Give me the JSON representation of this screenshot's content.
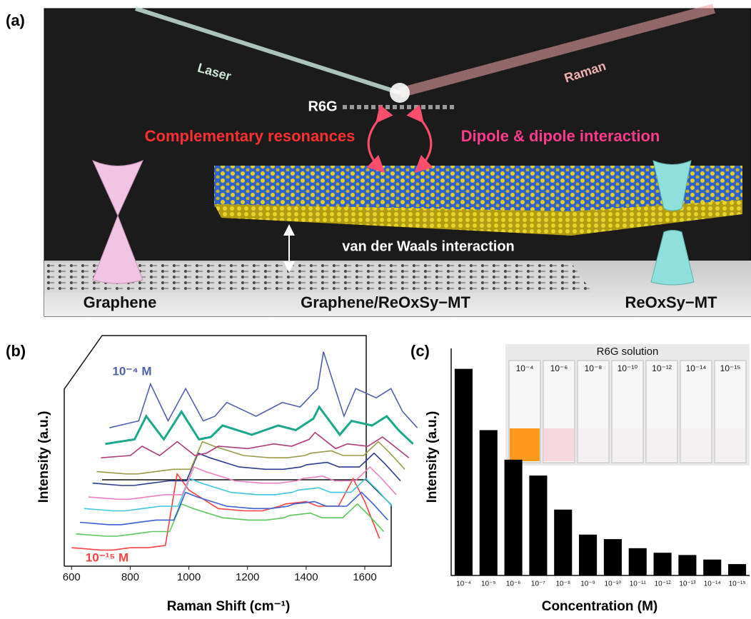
{
  "figure": {
    "panel_a": {
      "label": "(a)",
      "laser": "Laser",
      "raman": "Raman",
      "molecule": "R6G",
      "left_note": "Complementary resonances",
      "right_note": "Dipole & dipole interaction",
      "interlayer": "van der Waals interaction",
      "left_material": "Graphene",
      "center_material": "Graphene/ReOxSy−MT",
      "right_material": "ReOxSy−MT"
    }
  },
  "chart_data": [
    {
      "type": "waterfall",
      "panel_label": "(b)",
      "x_label": "Raman Shift (cm⁻¹)",
      "y_label": "Intensity (a.u.)",
      "annotations": [
        "10⁻⁴ M",
        "10⁻¹⁵ M"
      ],
      "x": [
        600,
        700,
        740,
        800,
        860,
        920,
        960,
        1000,
        1100,
        1190,
        1250,
        1310,
        1330,
        1400,
        1440,
        1510,
        1560,
        1600,
        1650
      ],
      "xlim": [
        575,
        1690
      ],
      "xticks": [
        600,
        800,
        1000,
        1200,
        1400,
        1600
      ],
      "ylim": [
        0,
        100
      ],
      "series": [
        {
          "color": "#ff4040",
          "values": [
            8,
            7,
            7,
            8,
            8,
            9,
            40,
            33,
            25,
            24,
            24,
            26,
            27,
            28,
            26,
            26,
            38,
            28,
            12
          ]
        },
        {
          "color": "#5bc85b",
          "values": [
            14,
            13,
            13,
            14,
            15,
            15,
            27,
            25,
            21,
            20,
            20,
            21,
            22,
            23,
            21,
            21,
            27,
            22,
            15
          ]
        },
        {
          "color": "#3d5fd6",
          "values": [
            19,
            18,
            18,
            19,
            20,
            20,
            32,
            30,
            26,
            25,
            25,
            26,
            27,
            28,
            26,
            26,
            32,
            27,
            20
          ]
        },
        {
          "color": "#3fc6e0",
          "values": [
            25,
            24,
            24,
            25,
            26,
            26,
            38,
            36,
            32,
            31,
            31,
            32,
            33,
            34,
            32,
            32,
            38,
            33,
            26
          ]
        },
        {
          "color": "#ef7fbf",
          "values": [
            30,
            29,
            29,
            30,
            31,
            31,
            43,
            41,
            37,
            36,
            36,
            37,
            38,
            39,
            37,
            37,
            43,
            38,
            31
          ]
        },
        {
          "color": "#2b3d8f",
          "values": [
            36,
            35,
            35,
            36,
            37,
            37,
            49,
            47,
            43,
            42,
            42,
            43,
            44,
            45,
            43,
            43,
            49,
            44,
            37
          ]
        },
        {
          "color": "#9a9a4a",
          "values": [
            41,
            40,
            40,
            41,
            42,
            42,
            54,
            52,
            48,
            47,
            47,
            48,
            49,
            50,
            48,
            48,
            54,
            49,
            42
          ]
        },
        {
          "color": "#b03a7a",
          "values": [
            47,
            48,
            52,
            48,
            54,
            48,
            49,
            52,
            51,
            53,
            52,
            55,
            58,
            51,
            53,
            52,
            56,
            52,
            47
          ]
        },
        {
          "color": "#19a88c",
          "values": [
            53,
            55,
            65,
            55,
            67,
            55,
            56,
            61,
            57,
            61,
            59,
            64,
            69,
            57,
            63,
            61,
            65,
            59,
            53
          ]
        },
        {
          "color": "#5060b0",
          "values": [
            60,
            63,
            79,
            63,
            77,
            63,
            65,
            71,
            65,
            71,
            69,
            77,
            93,
            65,
            77,
            73,
            77,
            67,
            60
          ]
        }
      ]
    },
    {
      "type": "bar",
      "panel_label": "(c)",
      "x_label": "Concentration (M)",
      "y_label": "Intensity (a.u.)",
      "categories": [
        "10⁻⁴",
        "10⁻⁵",
        "10⁻⁶",
        "10⁻⁷",
        "10⁻⁸",
        "10⁻⁹",
        "10⁻¹⁰",
        "10⁻¹¹",
        "10⁻¹²",
        "10⁻¹³",
        "10⁻¹⁴",
        "10⁻¹⁵"
      ],
      "values": [
        91,
        64,
        51,
        44,
        29,
        18,
        16,
        12,
        10,
        9,
        7,
        5
      ],
      "color": "#000000",
      "ylim": [
        0,
        100
      ],
      "inset": {
        "title": "R6G solution",
        "labels": [
          "10⁻⁴",
          "10⁻⁶",
          "10⁻⁸",
          "10⁻¹⁰",
          "10⁻¹²",
          "10⁻¹⁴",
          "10⁻¹⁵"
        ]
      }
    }
  ]
}
